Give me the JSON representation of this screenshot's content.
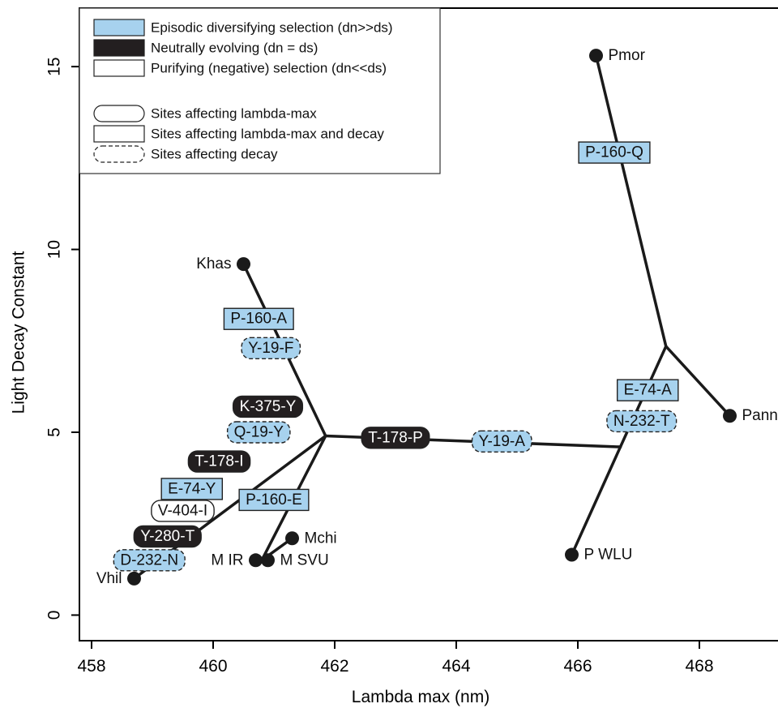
{
  "colors": {
    "episodic": "#a7d2ee",
    "neutral": "#231f20",
    "purifying": "#ffffff",
    "branch": "#1a1a1a"
  },
  "chart_data": {
    "type": "scatter",
    "xlabel": "Lambda max (nm)",
    "ylabel": "Light Decay Constant",
    "xlim": [
      457.8,
      469.4
    ],
    "ylim": [
      -0.7,
      16.6
    ],
    "xticks": [
      458,
      460,
      462,
      464,
      466,
      468
    ],
    "yticks": [
      0,
      5,
      10,
      15
    ],
    "grid": false,
    "legend_position": "top-left",
    "legend": {
      "selection": [
        {
          "style": "episodic",
          "label": "Episodic diversifying selection (dn>>ds)"
        },
        {
          "style": "neutral",
          "label": "Neutrally evolving (dn = ds)"
        },
        {
          "style": "purifying",
          "label": "Purifying (negative) selection (dn<<ds)"
        }
      ],
      "sites": [
        {
          "shape": "rounded",
          "label": "Sites affecting lambda-max"
        },
        {
          "shape": "rect",
          "label": "Sites affecting lambda-max and decay"
        },
        {
          "shape": "dashed",
          "label": "Sites affecting decay"
        }
      ]
    },
    "tips": [
      {
        "name": "Pmor",
        "x": 466.3,
        "y": 15.3,
        "side": "right"
      },
      {
        "name": "Pann",
        "x": 468.5,
        "y": 5.45,
        "side": "right"
      },
      {
        "name": "P WLU",
        "x": 465.9,
        "y": 1.65,
        "side": "right"
      },
      {
        "name": "Khas",
        "x": 460.5,
        "y": 9.6,
        "side": "left"
      },
      {
        "name": "Mchi",
        "x": 461.3,
        "y": 2.1,
        "side": "right"
      },
      {
        "name": "M IR",
        "x": 460.7,
        "y": 1.5,
        "side": "left"
      },
      {
        "name": "M SVU",
        "x": 460.9,
        "y": 1.5,
        "side": "right"
      },
      {
        "name": "Vhil",
        "x": 458.7,
        "y": 1.0,
        "side": "left"
      }
    ],
    "substitutions": [
      {
        "label": "P-160-Q",
        "x": 466.6,
        "y": 12.65,
        "selection": "episodic",
        "shape": "rect"
      },
      {
        "label": "E-74-A",
        "x": 467.15,
        "y": 6.15,
        "selection": "episodic",
        "shape": "rect"
      },
      {
        "label": "N-232-T",
        "x": 467.05,
        "y": 5.3,
        "selection": "episodic",
        "shape": "dashed"
      },
      {
        "label": "T-178-P",
        "x": 463.0,
        "y": 4.85,
        "selection": "neutral",
        "shape": "rounded"
      },
      {
        "label": "Y-19-A",
        "x": 464.75,
        "y": 4.75,
        "selection": "episodic",
        "shape": "dashed"
      },
      {
        "label": "P-160-A",
        "x": 460.75,
        "y": 8.1,
        "selection": "episodic",
        "shape": "rect"
      },
      {
        "label": "Y-19-F",
        "x": 460.95,
        "y": 7.3,
        "selection": "episodic",
        "shape": "dashed"
      },
      {
        "label": "K-375-Y",
        "x": 460.9,
        "y": 5.7,
        "selection": "neutral",
        "shape": "rounded"
      },
      {
        "label": "Q-19-Y",
        "x": 460.75,
        "y": 5.0,
        "selection": "episodic",
        "shape": "dashed"
      },
      {
        "label": "T-178-I",
        "x": 460.1,
        "y": 4.2,
        "selection": "neutral",
        "shape": "rounded"
      },
      {
        "label": "E-74-Y",
        "x": 459.65,
        "y": 3.45,
        "selection": "episodic",
        "shape": "rect"
      },
      {
        "label": "V-404-I",
        "x": 459.5,
        "y": 2.85,
        "selection": "purifying",
        "shape": "rounded"
      },
      {
        "label": "Y-280-T",
        "x": 459.25,
        "y": 2.15,
        "selection": "neutral",
        "shape": "rounded"
      },
      {
        "label": "D-232-N",
        "x": 458.95,
        "y": 1.5,
        "selection": "episodic",
        "shape": "dashed"
      },
      {
        "label": "P-160-E",
        "x": 461.0,
        "y": 3.15,
        "selection": "episodic",
        "shape": "rect"
      }
    ],
    "branches": [
      [
        [
          466.3,
          15.3
        ],
        [
          467.45,
          7.35
        ]
      ],
      [
        [
          467.45,
          7.35
        ],
        [
          468.5,
          5.45
        ]
      ],
      [
        [
          467.45,
          7.35
        ],
        [
          466.7,
          4.6
        ]
      ],
      [
        [
          466.7,
          4.6
        ],
        [
          465.9,
          1.65
        ]
      ],
      [
        [
          466.7,
          4.6
        ],
        [
          461.85,
          4.9
        ]
      ],
      [
        [
          461.85,
          4.9
        ],
        [
          460.5,
          9.6
        ]
      ],
      [
        [
          461.85,
          4.9
        ],
        [
          460.8,
          1.5
        ]
      ],
      [
        [
          460.8,
          1.5
        ],
        [
          461.3,
          2.1
        ]
      ],
      [
        [
          461.85,
          4.9
        ],
        [
          458.7,
          1.0
        ]
      ]
    ]
  }
}
